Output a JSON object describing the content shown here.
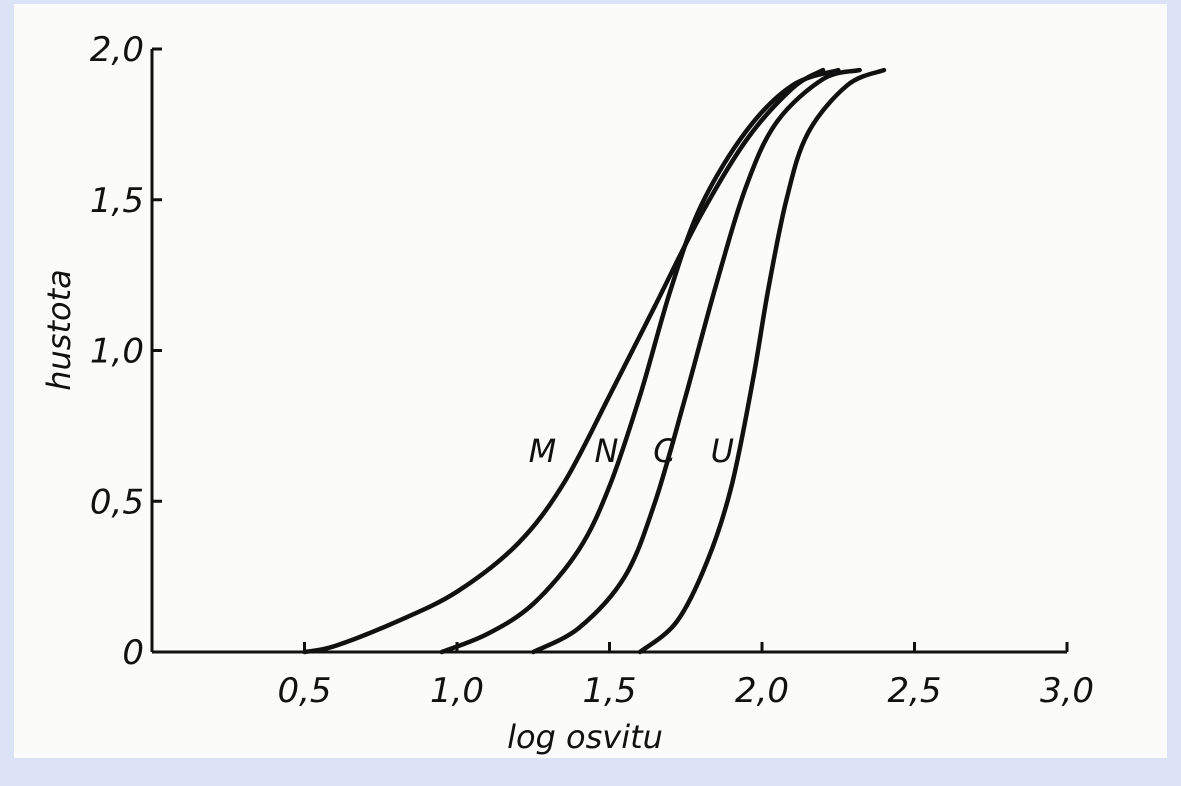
{
  "chart_data": {
    "type": "line",
    "title": "",
    "xlabel": "log osvitu",
    "ylabel": "hustota",
    "xlim": [
      0,
      3.0
    ],
    "ylim": [
      0,
      2.0
    ],
    "x_ticks": [
      {
        "value": 0.5,
        "label": "0,5"
      },
      {
        "value": 1.0,
        "label": "1,0"
      },
      {
        "value": 1.5,
        "label": "1,5"
      },
      {
        "value": 2.0,
        "label": "2,0"
      },
      {
        "value": 2.5,
        "label": "2,5"
      },
      {
        "value": 3.0,
        "label": "3,0"
      }
    ],
    "y_ticks": [
      {
        "value": 0,
        "label": "0"
      },
      {
        "value": 0.5,
        "label": "0,5"
      },
      {
        "value": 1.0,
        "label": "1,0"
      },
      {
        "value": 1.5,
        "label": "1,5"
      },
      {
        "value": 2.0,
        "label": "2,0"
      }
    ],
    "grid": false,
    "series": [
      {
        "name": "M",
        "points": [
          [
            0.5,
            0.0
          ],
          [
            0.6,
            0.02
          ],
          [
            0.8,
            0.1
          ],
          [
            1.0,
            0.2
          ],
          [
            1.2,
            0.36
          ],
          [
            1.35,
            0.56
          ],
          [
            1.5,
            0.85
          ],
          [
            1.65,
            1.15
          ],
          [
            1.8,
            1.45
          ],
          [
            1.95,
            1.7
          ],
          [
            2.1,
            1.87
          ],
          [
            2.2,
            1.93
          ]
        ]
      },
      {
        "name": "N",
        "points": [
          [
            0.95,
            0.0
          ],
          [
            1.1,
            0.06
          ],
          [
            1.25,
            0.16
          ],
          [
            1.4,
            0.34
          ],
          [
            1.5,
            0.55
          ],
          [
            1.6,
            0.85
          ],
          [
            1.7,
            1.2
          ],
          [
            1.8,
            1.48
          ],
          [
            1.95,
            1.73
          ],
          [
            2.1,
            1.88
          ],
          [
            2.25,
            1.93
          ]
        ]
      },
      {
        "name": "C",
        "points": [
          [
            1.25,
            0.0
          ],
          [
            1.4,
            0.08
          ],
          [
            1.55,
            0.25
          ],
          [
            1.65,
            0.5
          ],
          [
            1.75,
            0.85
          ],
          [
            1.85,
            1.22
          ],
          [
            1.95,
            1.55
          ],
          [
            2.05,
            1.76
          ],
          [
            2.2,
            1.9
          ],
          [
            2.32,
            1.93
          ]
        ]
      },
      {
        "name": "U",
        "points": [
          [
            1.6,
            0.0
          ],
          [
            1.72,
            0.1
          ],
          [
            1.82,
            0.3
          ],
          [
            1.9,
            0.55
          ],
          [
            1.97,
            0.9
          ],
          [
            2.02,
            1.2
          ],
          [
            2.08,
            1.5
          ],
          [
            2.15,
            1.72
          ],
          [
            2.28,
            1.88
          ],
          [
            2.4,
            1.93
          ]
        ]
      }
    ],
    "curve_labels": [
      {
        "text": "M",
        "x": 1.28,
        "y": 0.63
      },
      {
        "text": "N",
        "x": 1.49,
        "y": 0.63
      },
      {
        "text": "C",
        "x": 1.68,
        "y": 0.63
      },
      {
        "text": "U",
        "x": 1.87,
        "y": 0.63
      }
    ],
    "colors": {
      "line": "#111111",
      "paper": "#fbfbf9",
      "border": "#dde3f7"
    }
  }
}
